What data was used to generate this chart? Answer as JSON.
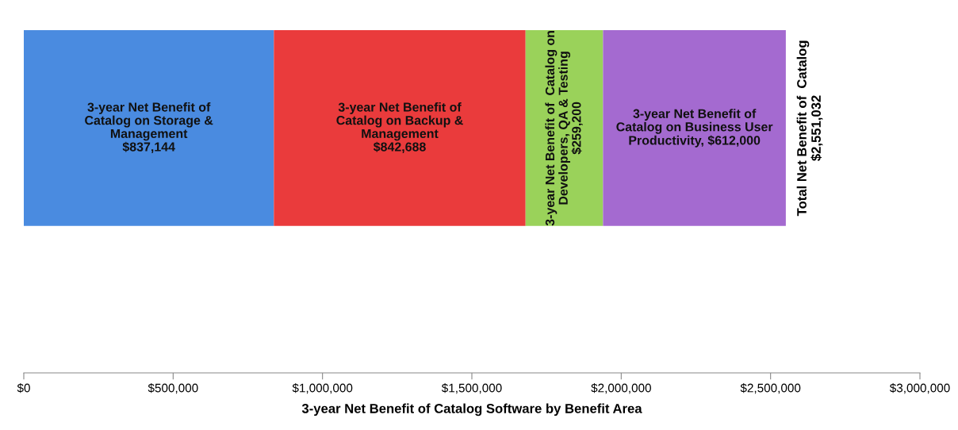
{
  "chart_data": {
    "type": "bar",
    "orientation": "horizontal",
    "stacked": true,
    "categories": [
      null
    ],
    "series": [
      {
        "color": "#4a8be0",
        "values": [
          837144
        ],
        "value_labels": [
          "3-year Net Benefit of\nCatalog on Storage &\nManagement\n$837,144"
        ]
      },
      {
        "color": "#ea3b3c",
        "values": [
          842688
        ],
        "value_labels": [
          "3-year Net Benefit of\nCatalog on Backup &\nManagement\n$842,688"
        ]
      },
      {
        "color": "#9ad25a",
        "values": [
          259200
        ],
        "value_labels": [
          "3-year Net Benefit of  Catalog on\nDevelopers, QA & Testing\n$259,200"
        ]
      },
      {
        "color": "#a46ad0",
        "values": [
          612000
        ],
        "value_labels": [
          "3-year Net Benefit of\nCatalog on Business User\nProductivity, $612,000"
        ]
      }
    ],
    "totals": [
      "Total Net Benefit of  Catalog\n$2,551,032"
    ],
    "xlim": [
      0,
      3000000
    ],
    "xticks": [
      {
        "value": 0,
        "label": "$0"
      },
      {
        "value": 500000,
        "label": "$500,000"
      },
      {
        "value": 1000000,
        "label": "$1,000,000"
      },
      {
        "value": 1500000,
        "label": "$1,500,000"
      },
      {
        "value": 2000000,
        "label": "$2,000,000"
      },
      {
        "value": 2500000,
        "label": "$2,500,000"
      },
      {
        "value": 3000000,
        "label": "$3,000,000"
      }
    ],
    "xlabel": "3-year Net Benefit of Catalog Software by Benefit Area",
    "tick_labels": "x",
    "grid": false,
    "legend": false
  }
}
